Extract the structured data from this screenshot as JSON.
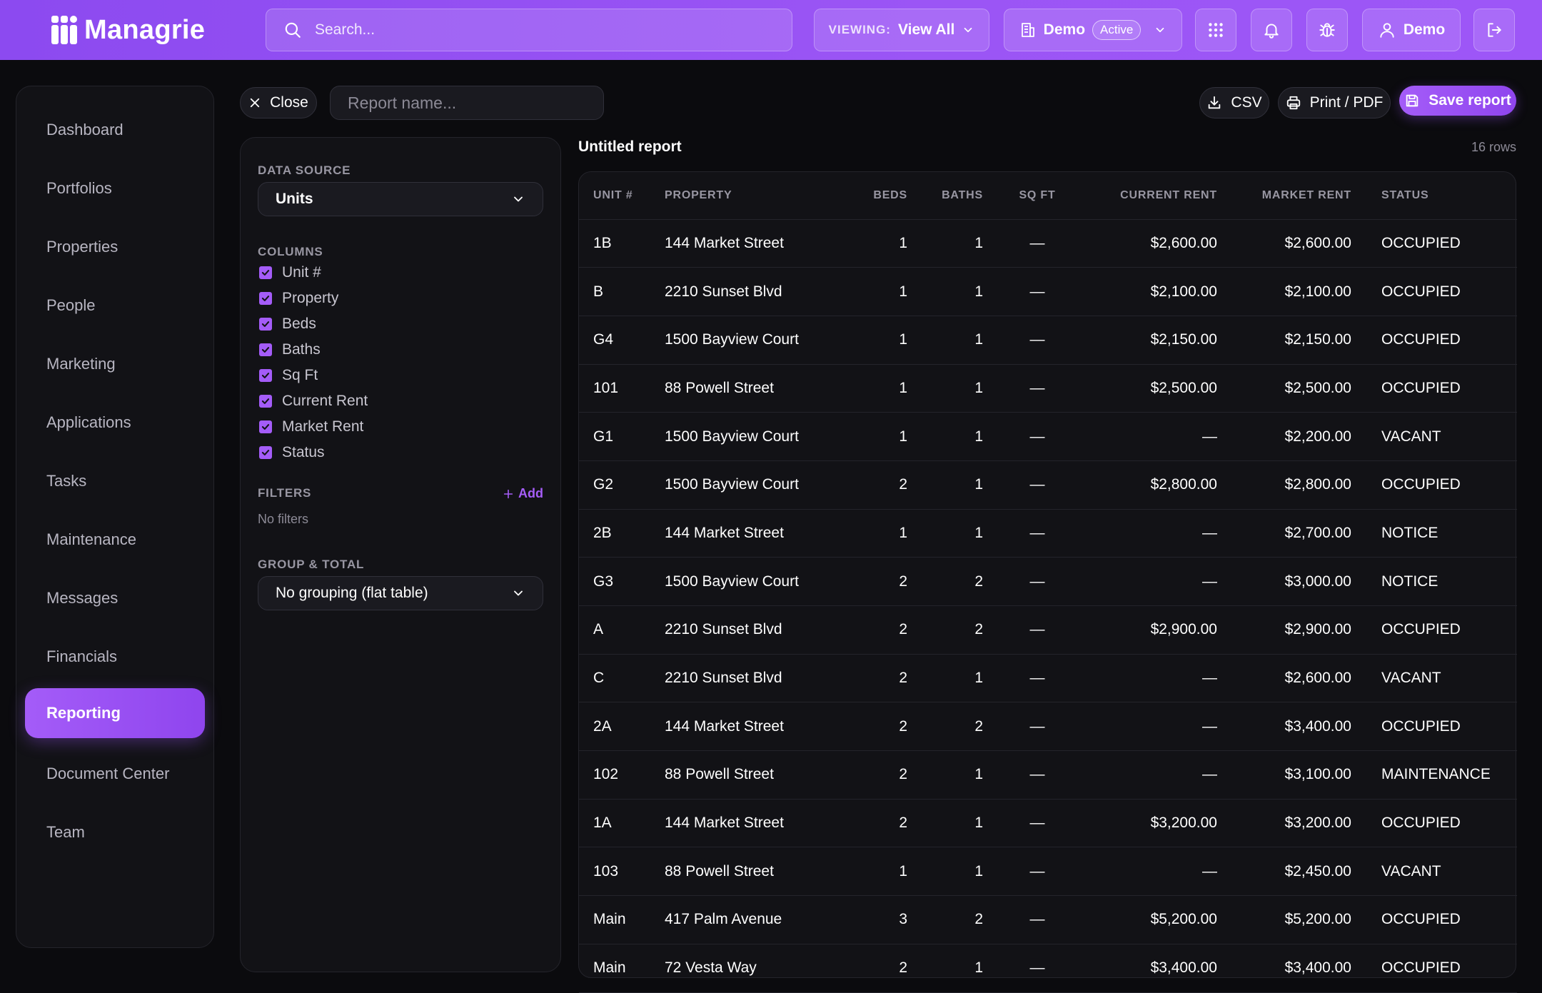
{
  "app": {
    "name": "Managrie",
    "search_placeholder": "Search...",
    "viewing_label": "VIEWING:",
    "viewing_value": "View All",
    "org_name": "Demo",
    "org_status": "Active",
    "user_name": "Demo"
  },
  "sidebar": {
    "items": [
      {
        "label": "Dashboard"
      },
      {
        "label": "Portfolios"
      },
      {
        "label": "Properties"
      },
      {
        "label": "People"
      },
      {
        "label": "Marketing"
      },
      {
        "label": "Applications"
      },
      {
        "label": "Tasks"
      },
      {
        "label": "Maintenance"
      },
      {
        "label": "Messages"
      },
      {
        "label": "Financials"
      },
      {
        "label": "Reporting",
        "active": true
      },
      {
        "label": "Document Center"
      },
      {
        "label": "Team"
      }
    ]
  },
  "toolbar": {
    "close_label": "Close",
    "report_name_placeholder": "Report name...",
    "csv_label": "CSV",
    "print_label": "Print / PDF",
    "save_label": "Save report"
  },
  "config": {
    "data_source_label": "DATA SOURCE",
    "data_source_value": "Units",
    "columns_label": "COLUMNS",
    "columns": [
      "Unit #",
      "Property",
      "Beds",
      "Baths",
      "Sq Ft",
      "Current Rent",
      "Market Rent",
      "Status"
    ],
    "filters_label": "FILTERS",
    "add_filter_label": "Add",
    "no_filters_text": "No filters",
    "group_label": "GROUP & TOTAL",
    "group_value": "No grouping (flat table)"
  },
  "report": {
    "title": "Untitled report",
    "row_count": "16 rows",
    "headers": [
      "UNIT #",
      "PROPERTY",
      "BEDS",
      "BATHS",
      "SQ FT",
      "CURRENT RENT",
      "MARKET RENT",
      "STATUS"
    ],
    "rows": [
      [
        "1B",
        "144 Market Street",
        "1",
        "1",
        "—",
        "$2,600.00",
        "$2,600.00",
        "OCCUPIED"
      ],
      [
        "B",
        "2210 Sunset Blvd",
        "1",
        "1",
        "—",
        "$2,100.00",
        "$2,100.00",
        "OCCUPIED"
      ],
      [
        "G4",
        "1500 Bayview Court",
        "1",
        "1",
        "—",
        "$2,150.00",
        "$2,150.00",
        "OCCUPIED"
      ],
      [
        "101",
        "88 Powell Street",
        "1",
        "1",
        "—",
        "$2,500.00",
        "$2,500.00",
        "OCCUPIED"
      ],
      [
        "G1",
        "1500 Bayview Court",
        "1",
        "1",
        "—",
        "—",
        "$2,200.00",
        "VACANT"
      ],
      [
        "G2",
        "1500 Bayview Court",
        "2",
        "1",
        "—",
        "$2,800.00",
        "$2,800.00",
        "OCCUPIED"
      ],
      [
        "2B",
        "144 Market Street",
        "1",
        "1",
        "—",
        "—",
        "$2,700.00",
        "NOTICE"
      ],
      [
        "G3",
        "1500 Bayview Court",
        "2",
        "2",
        "—",
        "—",
        "$3,000.00",
        "NOTICE"
      ],
      [
        "A",
        "2210 Sunset Blvd",
        "2",
        "2",
        "—",
        "$2,900.00",
        "$2,900.00",
        "OCCUPIED"
      ],
      [
        "C",
        "2210 Sunset Blvd",
        "2",
        "1",
        "—",
        "—",
        "$2,600.00",
        "VACANT"
      ],
      [
        "2A",
        "144 Market Street",
        "2",
        "2",
        "—",
        "—",
        "$3,400.00",
        "OCCUPIED"
      ],
      [
        "102",
        "88 Powell Street",
        "2",
        "1",
        "—",
        "—",
        "$3,100.00",
        "MAINTENANCE"
      ],
      [
        "1A",
        "144 Market Street",
        "2",
        "1",
        "—",
        "$3,200.00",
        "$3,200.00",
        "OCCUPIED"
      ],
      [
        "103",
        "88 Powell Street",
        "1",
        "1",
        "—",
        "—",
        "$2,450.00",
        "VACANT"
      ],
      [
        "Main",
        "417 Palm Avenue",
        "3",
        "2",
        "—",
        "$5,200.00",
        "$5,200.00",
        "OCCUPIED"
      ],
      [
        "Main",
        "72 Vesta Way",
        "2",
        "1",
        "—",
        "$3,400.00",
        "$3,400.00",
        "OCCUPIED"
      ]
    ]
  },
  "colors": {
    "accent": "#9b55f5",
    "background": "#0b0b0e",
    "panel": "#121216"
  },
  "icons": {
    "search": "search-icon",
    "chevron": "chevron-down-icon",
    "building": "building-icon",
    "grid": "apps-grid-icon",
    "bell": "bell-icon",
    "bug": "bug-icon",
    "user": "user-icon",
    "logout": "logout-icon",
    "close": "close-icon",
    "download": "download-icon",
    "print": "printer-icon",
    "save": "save-icon",
    "plus": "plus-icon",
    "check": "check-icon"
  }
}
